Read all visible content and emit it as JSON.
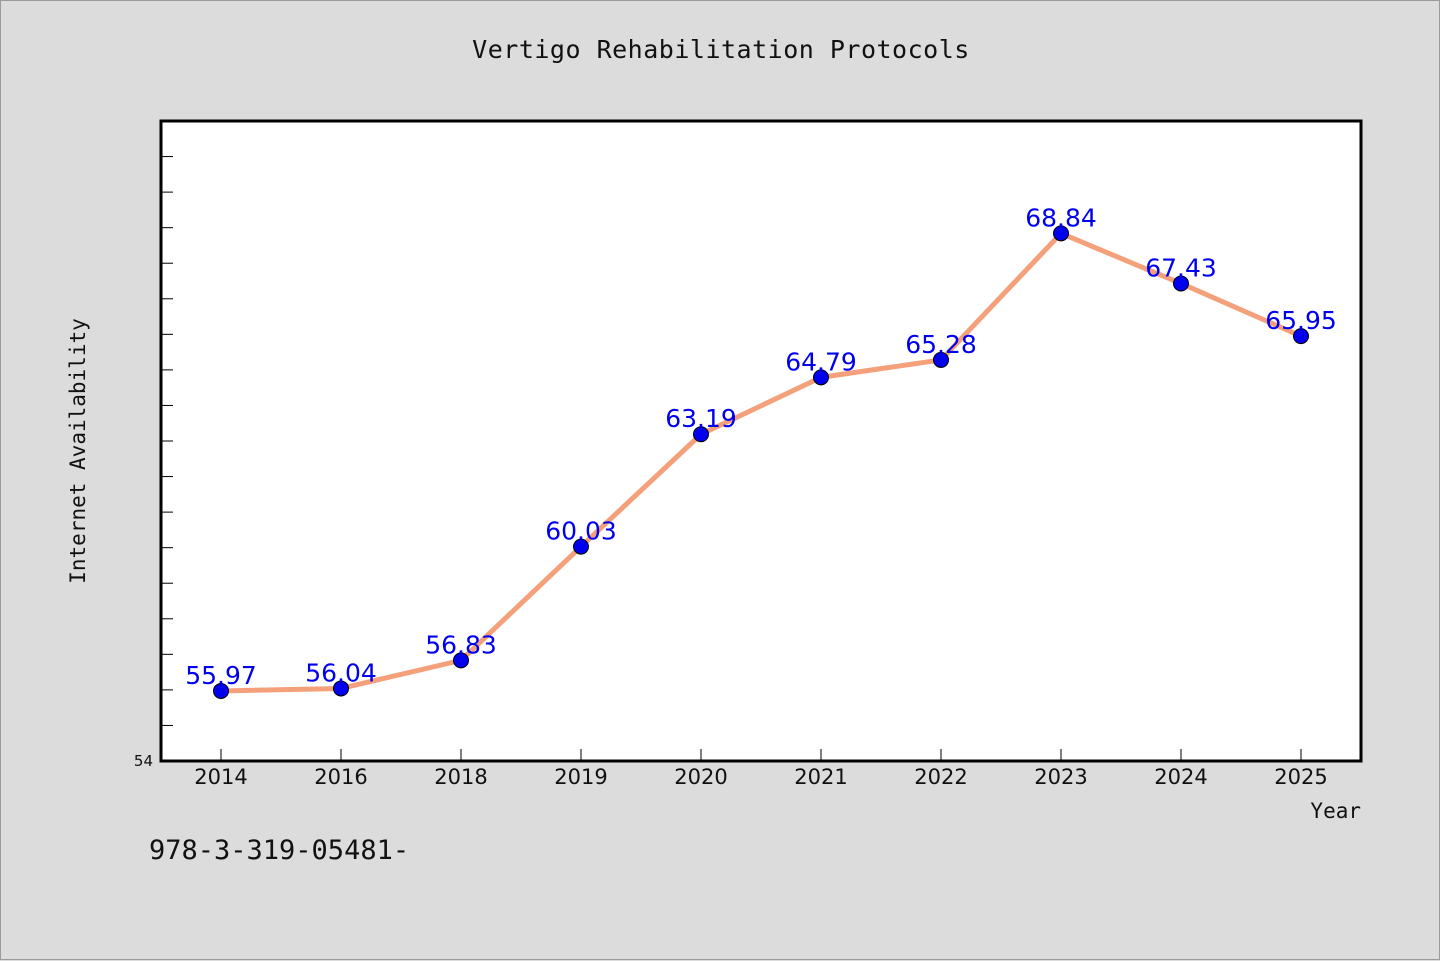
{
  "chart_data": {
    "type": "line",
    "title": "Vertigo Rehabilitation Protocols",
    "xlabel": "Year",
    "ylabel": "Internet Availability",
    "categories": [
      "2014",
      "2016",
      "2018",
      "2019",
      "2020",
      "2021",
      "2022",
      "2023",
      "2024",
      "2025"
    ],
    "series": [
      {
        "values": [
          55.97,
          56.04,
          56.83,
          60.03,
          63.19,
          64.79,
          65.28,
          68.84,
          67.43,
          65.95
        ],
        "data_labels": [
          "55.97",
          "56.04",
          "56.83",
          "60.03",
          "63.19",
          "64.79",
          "65.28",
          "68.84",
          "67.43",
          "65.95"
        ]
      }
    ],
    "ylim": [
      54,
      72
    ],
    "y_tick_labels": [
      "54"
    ],
    "grid": false,
    "line_color": "#f4a07a",
    "marker_color": "#0000ee",
    "label_color": "#0000ee",
    "plot_background": "#ffffff"
  },
  "footer_text": "978-3-319-05481-"
}
